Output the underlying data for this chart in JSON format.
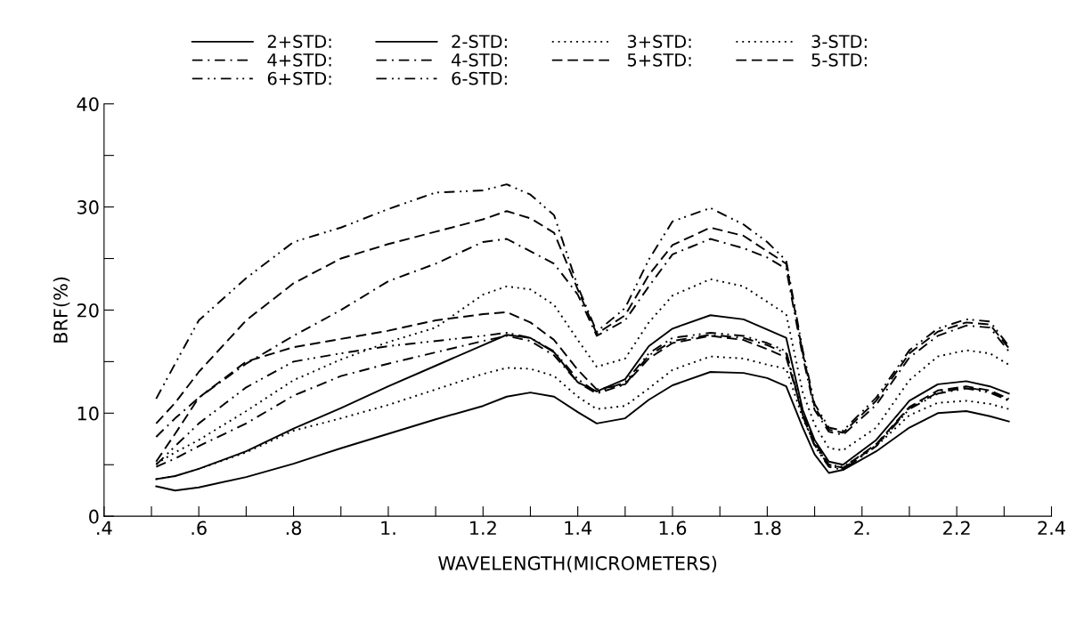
{
  "chart_data": {
    "type": "line",
    "xlabel": "WAVELENGTH(MICROMETERS)",
    "ylabel": "BRF(%)",
    "x": [
      0.51,
      0.55,
      0.6,
      0.7,
      0.8,
      0.9,
      1.0,
      1.1,
      1.2,
      1.25,
      1.3,
      1.35,
      1.4,
      1.44,
      1.5,
      1.55,
      1.6,
      1.68,
      1.75,
      1.8,
      1.84,
      1.875,
      1.9,
      1.93,
      1.96,
      2.03,
      2.1,
      2.16,
      2.22,
      2.27,
      2.31
    ],
    "xlim": [
      0.4,
      2.4
    ],
    "ylim": [
      0,
      40
    ],
    "xticks": [
      {
        "value": 0.4,
        "label": ".4"
      },
      {
        "value": 0.5,
        "label": null
      },
      {
        "value": 0.6,
        "label": ".6"
      },
      {
        "value": 0.7,
        "label": null
      },
      {
        "value": 0.8,
        "label": ".8"
      },
      {
        "value": 0.9,
        "label": null
      },
      {
        "value": 1.0,
        "label": "1."
      },
      {
        "value": 1.1,
        "label": null
      },
      {
        "value": 1.2,
        "label": "1.2"
      },
      {
        "value": 1.3,
        "label": null
      },
      {
        "value": 1.4,
        "label": "1.4"
      },
      {
        "value": 1.5,
        "label": null
      },
      {
        "value": 1.6,
        "label": "1.6"
      },
      {
        "value": 1.7,
        "label": null
      },
      {
        "value": 1.8,
        "label": "1.8"
      },
      {
        "value": 1.9,
        "label": null
      },
      {
        "value": 2.0,
        "label": "2."
      },
      {
        "value": 2.1,
        "label": null
      },
      {
        "value": 2.2,
        "label": "2.2"
      },
      {
        "value": 2.3,
        "label": null
      },
      {
        "value": 2.4,
        "label": "2.4"
      }
    ],
    "yticks": [
      0,
      {
        "value": 5,
        "label": null
      },
      10,
      {
        "value": 15,
        "label": null
      },
      20,
      {
        "value": 25,
        "label": null
      },
      30,
      {
        "value": 35,
        "label": null
      },
      40
    ],
    "grid": false,
    "legend": "top",
    "marker": "none",
    "series": [
      {
        "name": "2+STD:",
        "color": "#000000",
        "line_style": "solid",
        "values": [
          3.6,
          3.9,
          4.6,
          6.3,
          8.5,
          10.5,
          12.6,
          14.6,
          16.6,
          17.6,
          17.3,
          15.9,
          13.0,
          12.1,
          13.3,
          16.5,
          18.2,
          19.5,
          19.1,
          18.1,
          17.3,
          10.3,
          7.4,
          5.3,
          5.0,
          7.4,
          11.2,
          12.8,
          13.1,
          12.6,
          11.9
        ]
      },
      {
        "name": "4+STD:",
        "color": "#000000",
        "line_style": "dashdot",
        "values": [
          7.7,
          9.5,
          11.5,
          14.8,
          17.5,
          20.0,
          22.8,
          24.5,
          26.6,
          26.9,
          25.7,
          24.5,
          21.5,
          17.5,
          19.0,
          22.3,
          25.4,
          26.9,
          26.0,
          25.1,
          24.0,
          15.5,
          10.3,
          8.2,
          7.9,
          10.8,
          15.4,
          17.5,
          18.5,
          18.3,
          16.0
        ]
      },
      {
        "name": "6+STD:",
        "color": "#000000",
        "line_style": "dashdotdot",
        "values": [
          11.4,
          14.8,
          19.0,
          23.1,
          26.6,
          28.0,
          29.8,
          31.4,
          31.6,
          32.2,
          31.2,
          29.2,
          22.3,
          17.9,
          20.2,
          24.9,
          28.6,
          29.9,
          28.3,
          26.6,
          24.8,
          16.1,
          10.9,
          8.6,
          8.3,
          11.5,
          16.1,
          18.2,
          19.1,
          18.9,
          16.5
        ]
      },
      {
        "name": "2-STD:",
        "color": "#000000",
        "line_style": "solid",
        "values": [
          2.9,
          2.5,
          2.8,
          3.8,
          5.1,
          6.6,
          8.0,
          9.4,
          10.7,
          11.6,
          12.0,
          11.6,
          10.1,
          9.0,
          9.5,
          11.3,
          12.7,
          14.0,
          13.9,
          13.4,
          12.6,
          8.6,
          6.0,
          4.2,
          4.5,
          6.3,
          8.6,
          10.0,
          10.2,
          9.7,
          9.2
        ]
      },
      {
        "name": "4-STD:",
        "color": "#000000",
        "line_style": "dashdot",
        "values": [
          4.8,
          5.6,
          6.8,
          9.0,
          11.7,
          13.6,
          14.8,
          15.9,
          17.0,
          17.5,
          17.0,
          15.6,
          13.0,
          11.9,
          12.8,
          15.6,
          17.0,
          17.6,
          17.3,
          16.6,
          15.8,
          9.7,
          6.9,
          4.9,
          4.6,
          6.9,
          10.5,
          12.0,
          12.5,
          12.1,
          11.3
        ]
      },
      {
        "name": "6-STD:",
        "color": "#000000",
        "line_style": "dashdotdot",
        "values": [
          5.0,
          6.8,
          9.0,
          12.5,
          15.0,
          15.8,
          16.5,
          17.0,
          17.5,
          17.8,
          17.3,
          16.0,
          13.3,
          12.0,
          13.0,
          15.8,
          17.3,
          17.8,
          17.5,
          16.8,
          16.0,
          9.8,
          6.8,
          4.8,
          4.5,
          6.8,
          10.4,
          11.9,
          12.4,
          12.0,
          11.2
        ]
      },
      {
        "name": "3+STD:",
        "color": "#000000",
        "line_style": "dotted",
        "values": [
          5.1,
          6.2,
          7.4,
          10.2,
          13.2,
          15.2,
          16.9,
          18.3,
          21.5,
          22.3,
          22.0,
          20.5,
          17.1,
          14.5,
          15.3,
          18.8,
          21.4,
          23.0,
          22.3,
          20.8,
          19.6,
          12.0,
          8.9,
          6.6,
          6.4,
          8.6,
          13.2,
          15.5,
          16.1,
          15.8,
          14.7
        ]
      },
      {
        "name": "5+STD:",
        "color": "#000000",
        "line_style": "dashed",
        "values": [
          9.0,
          11.0,
          14.0,
          19.0,
          22.6,
          25.0,
          26.4,
          27.6,
          28.8,
          29.6,
          28.9,
          27.5,
          22.0,
          17.7,
          19.5,
          23.4,
          26.3,
          28.0,
          27.2,
          25.7,
          24.5,
          15.8,
          10.6,
          8.4,
          8.1,
          11.2,
          15.8,
          17.9,
          18.8,
          18.6,
          16.3
        ]
      },
      {
        "name": "3-STD:",
        "color": "#000000",
        "line_style": "dotted",
        "values": [
          3.6,
          3.9,
          4.6,
          6.2,
          8.3,
          9.5,
          10.8,
          12.3,
          13.8,
          14.4,
          14.3,
          13.6,
          11.6,
          10.4,
          10.7,
          12.4,
          14.2,
          15.5,
          15.3,
          14.7,
          14.3,
          9.5,
          7.0,
          5.0,
          4.8,
          6.8,
          9.8,
          11.0,
          11.2,
          10.9,
          10.4
        ]
      },
      {
        "name": "5-STD:",
        "color": "#000000",
        "line_style": "dashed",
        "values": [
          5.3,
          8.0,
          11.5,
          15.0,
          16.4,
          17.2,
          18.0,
          19.0,
          19.6,
          19.8,
          18.8,
          17.1,
          14.2,
          12.3,
          12.8,
          15.3,
          16.8,
          17.5,
          17.1,
          16.2,
          15.4,
          10.0,
          7.2,
          5.0,
          4.7,
          7.0,
          10.6,
          12.2,
          12.6,
          12.2,
          11.4
        ]
      }
    ]
  }
}
